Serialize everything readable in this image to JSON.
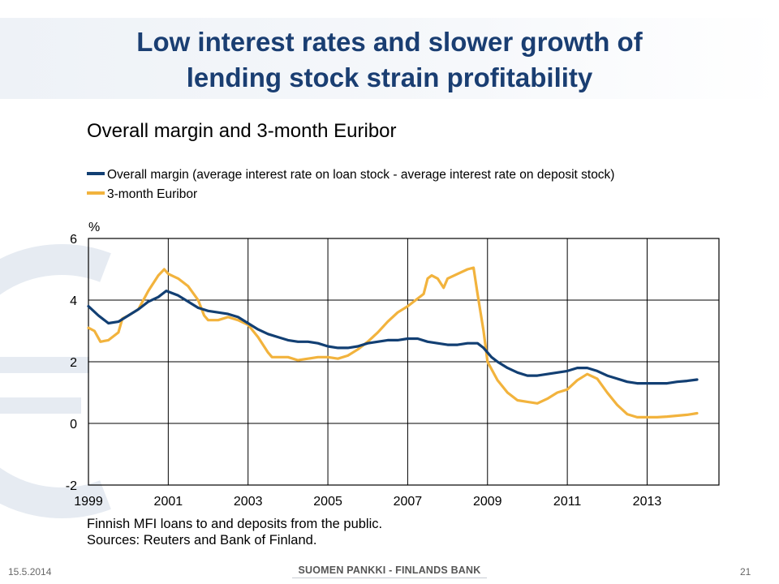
{
  "slide": {
    "title_line1": "Low interest rates and slower growth of",
    "title_line2": "lending stock strain profitability",
    "footer_date": "15.5.2014",
    "footer_brand": "SUOMEN PANKKI - FINLANDS BANK",
    "page_number": "21",
    "note_line1": "Finnish MFI loans to and deposits from the public.",
    "note_line2": "Sources: Reuters and Bank of Finland."
  },
  "colors": {
    "title": "#1a3e72",
    "series_margin": "#123f73",
    "series_euribor": "#f2b33d"
  },
  "chart_data": {
    "type": "line",
    "title": "Overall margin and 3-month Euribor",
    "ylabel": "%",
    "ylim": [
      -2,
      6
    ],
    "xlim": [
      1999.0,
      2014.8
    ],
    "yticks": [
      "6",
      "4",
      "2",
      "0",
      "-2"
    ],
    "xticks": [
      "1999",
      "2001",
      "2003",
      "2005",
      "2007",
      "2009",
      "2011",
      "2013"
    ],
    "grid": true,
    "legend_position": "top-left",
    "series": [
      {
        "name": "Overall margin (average interest rate on loan stock - average interest rate on deposit stock)",
        "color": "#123f73",
        "x": [
          1999.0,
          1999.25,
          1999.5,
          1999.75,
          2000.0,
          2000.25,
          2000.5,
          2000.75,
          2000.95,
          2001.25,
          2001.5,
          2001.75,
          2002.0,
          2002.25,
          2002.5,
          2002.75,
          2003.0,
          2003.25,
          2003.5,
          2003.75,
          2004.0,
          2004.25,
          2004.5,
          2004.75,
          2005.0,
          2005.25,
          2005.5,
          2005.75,
          2006.0,
          2006.25,
          2006.5,
          2006.75,
          2007.0,
          2007.25,
          2007.5,
          2007.75,
          2008.0,
          2008.25,
          2008.5,
          2008.75,
          2008.9,
          2009.1,
          2009.25,
          2009.5,
          2009.75,
          2010.0,
          2010.25,
          2010.5,
          2010.75,
          2011.0,
          2011.25,
          2011.5,
          2011.75,
          2012.0,
          2012.25,
          2012.5,
          2012.75,
          2013.0,
          2013.25,
          2013.5,
          2013.75,
          2014.0,
          2014.25
        ],
        "y": [
          3.8,
          3.5,
          3.25,
          3.3,
          3.5,
          3.7,
          3.95,
          4.1,
          4.3,
          4.15,
          3.95,
          3.75,
          3.65,
          3.6,
          3.55,
          3.45,
          3.25,
          3.05,
          2.9,
          2.8,
          2.7,
          2.65,
          2.65,
          2.6,
          2.5,
          2.45,
          2.45,
          2.5,
          2.6,
          2.65,
          2.7,
          2.7,
          2.75,
          2.75,
          2.65,
          2.6,
          2.55,
          2.55,
          2.6,
          2.6,
          2.45,
          2.15,
          2.0,
          1.8,
          1.65,
          1.55,
          1.55,
          1.6,
          1.65,
          1.7,
          1.8,
          1.8,
          1.7,
          1.55,
          1.45,
          1.35,
          1.3,
          1.3,
          1.3,
          1.3,
          1.35,
          1.38,
          1.42
        ]
      },
      {
        "name": "3-month Euribor",
        "color": "#f2b33d",
        "x": [
          1999.0,
          1999.15,
          1999.3,
          1999.5,
          1999.75,
          1999.85,
          2000.0,
          2000.25,
          2000.5,
          2000.75,
          2000.9,
          2001.0,
          2001.25,
          2001.5,
          2001.75,
          2001.9,
          2002.0,
          2002.25,
          2002.5,
          2002.75,
          2003.0,
          2003.25,
          2003.5,
          2003.6,
          2003.75,
          2004.0,
          2004.25,
          2004.5,
          2004.75,
          2005.0,
          2005.25,
          2005.5,
          2005.75,
          2006.0,
          2006.25,
          2006.5,
          2006.75,
          2007.0,
          2007.25,
          2007.4,
          2007.5,
          2007.6,
          2007.75,
          2007.9,
          2008.0,
          2008.25,
          2008.5,
          2008.65,
          2008.75,
          2008.9,
          2009.0,
          2009.25,
          2009.5,
          2009.75,
          2010.0,
          2010.25,
          2010.5,
          2010.75,
          2011.0,
          2011.25,
          2011.5,
          2011.75,
          2012.0,
          2012.25,
          2012.5,
          2012.75,
          2013.0,
          2013.25,
          2013.5,
          2013.75,
          2014.0,
          2014.25
        ],
        "y": [
          3.1,
          3.0,
          2.65,
          2.7,
          2.95,
          3.4,
          3.5,
          3.7,
          4.3,
          4.8,
          5.0,
          4.85,
          4.7,
          4.45,
          4.0,
          3.5,
          3.35,
          3.35,
          3.45,
          3.35,
          3.2,
          2.8,
          2.3,
          2.15,
          2.15,
          2.15,
          2.05,
          2.1,
          2.15,
          2.15,
          2.1,
          2.2,
          2.4,
          2.65,
          2.95,
          3.3,
          3.6,
          3.8,
          4.05,
          4.2,
          4.7,
          4.8,
          4.7,
          4.4,
          4.7,
          4.85,
          5.0,
          5.05,
          4.2,
          3.0,
          2.0,
          1.4,
          1.0,
          0.75,
          0.7,
          0.65,
          0.8,
          1.0,
          1.1,
          1.4,
          1.6,
          1.45,
          1.0,
          0.6,
          0.3,
          0.2,
          0.2,
          0.2,
          0.22,
          0.25,
          0.28,
          0.33
        ]
      }
    ]
  }
}
